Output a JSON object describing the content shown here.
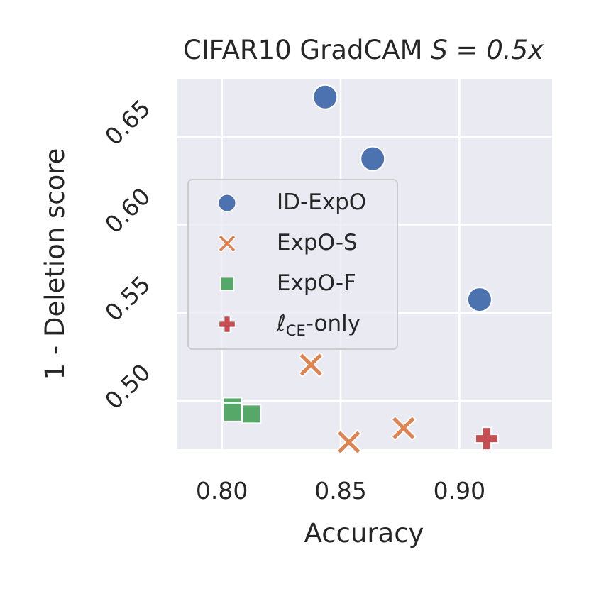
{
  "chart_data": {
    "type": "scatter",
    "title": "CIFAR10 GradCAM",
    "title_math": "S = 0.5x",
    "xlabel": "Accuracy",
    "ylabel": "1 - Deletion score",
    "xlim": [
      0.781,
      0.939
    ],
    "ylim": [
      0.4725,
      0.6825
    ],
    "xticks": [
      0.8,
      0.85,
      0.9
    ],
    "xtick_labels": [
      "0.80",
      "0.85",
      "0.90"
    ],
    "yticks": [
      0.5,
      0.55,
      0.6,
      0.65
    ],
    "ytick_labels": [
      "0.50",
      "0.55",
      "0.60",
      "0.65"
    ],
    "grid": true,
    "legend_position": "center-left",
    "series": [
      {
        "name": "ID-ExpO",
        "marker": "circle",
        "color": "#4c72b0",
        "points": [
          [
            0.8435,
            0.6725
          ],
          [
            0.8635,
            0.6375
          ],
          [
            0.9085,
            0.5575
          ]
        ]
      },
      {
        "name": "ExpO-S",
        "marker": "x",
        "color": "#dd8452",
        "points": [
          [
            0.8375,
            0.5205
          ],
          [
            0.8535,
            0.4765
          ],
          [
            0.8765,
            0.4845
          ]
        ]
      },
      {
        "name": "ExpO-F",
        "marker": "square",
        "color": "#55a868",
        "points": [
          [
            0.8045,
            0.4965
          ],
          [
            0.8045,
            0.4935
          ],
          [
            0.8125,
            0.4925
          ]
        ]
      },
      {
        "name": "ℓ",
        "name_sub": "CE",
        "name_suffix": "-only",
        "marker": "plus",
        "color": "#c44e52",
        "points": [
          [
            0.9115,
            0.4785
          ]
        ]
      }
    ]
  }
}
